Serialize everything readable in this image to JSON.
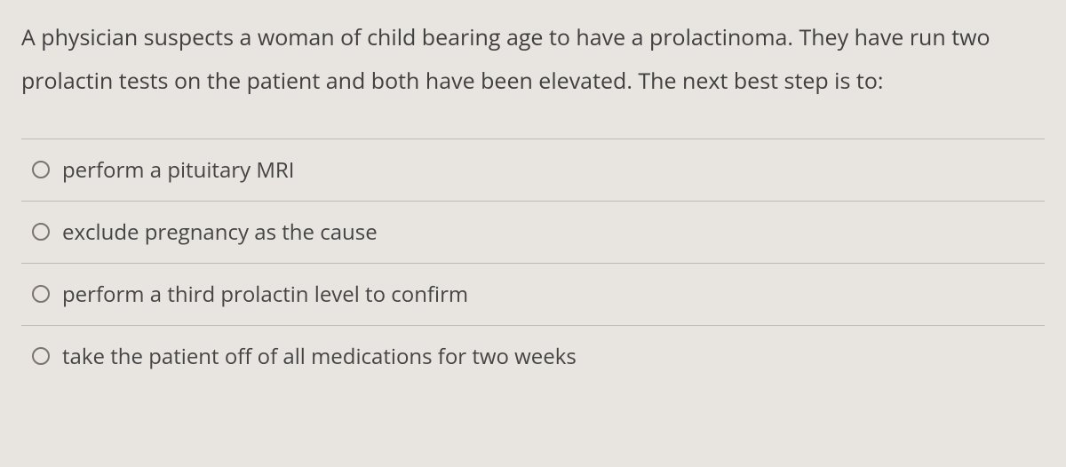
{
  "question": {
    "stem": "A physician suspects a woman of child bearing age to have a prolactinoma. They have run two prolactin tests on the patient and both have been elevated. The next best step is to:"
  },
  "options": [
    {
      "label": "perform a pituitary MRI"
    },
    {
      "label": "exclude pregnancy as the cause"
    },
    {
      "label": "perform a third prolactin level to confirm"
    },
    {
      "label": "take the patient off of all medications for two weeks"
    }
  ]
}
